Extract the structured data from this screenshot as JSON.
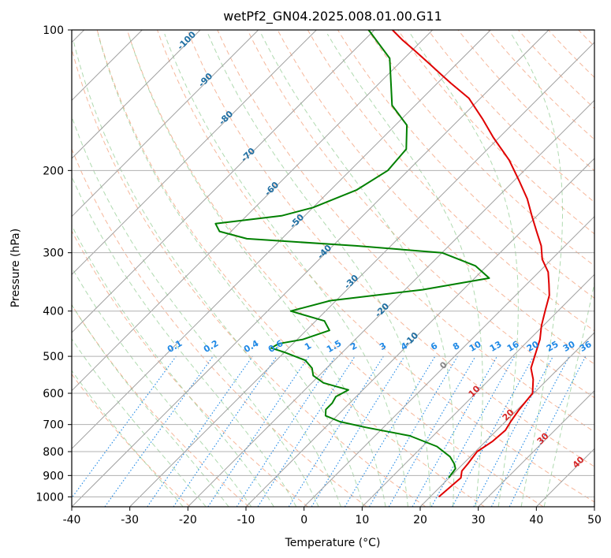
{
  "chart_data": {
    "type": "line",
    "title": "wetPf2_GN04.2025.008.01.00.G11",
    "xlabel": "Temperature (°C)",
    "ylabel": "Pressure (hPa)",
    "xlim": [
      -40,
      50
    ],
    "ylim": [
      1050,
      100
    ],
    "y_scale": "log",
    "skew": true,
    "x_ticks": [
      -40,
      -30,
      -20,
      -10,
      0,
      10,
      20,
      30,
      40,
      50
    ],
    "y_ticks": [
      100,
      200,
      300,
      400,
      500,
      600,
      700,
      800,
      900,
      1000
    ],
    "grid": true,
    "colors": {
      "temperature": "#e00000",
      "dewpoint": "#008000",
      "isotherm": "#a0a0a0",
      "dry_adiabat": "#f4a582",
      "moist_adiabat": "#8fca8f",
      "mixing_ratio": "#1e88e5",
      "isotherm_label": "#1f6fa3",
      "dry_adiabat_label": "#d62728"
    },
    "series": [
      {
        "key": "temperature",
        "points": [
          [
            1000,
            21.5
          ],
          [
            910,
            22.0
          ],
          [
            880,
            21.0
          ],
          [
            850,
            20.8
          ],
          [
            800,
            20.3
          ],
          [
            760,
            21.2
          ],
          [
            720,
            21.5
          ],
          [
            690,
            20.9
          ],
          [
            650,
            20.3
          ],
          [
            600,
            19.8
          ],
          [
            560,
            17.5
          ],
          [
            530,
            15.2
          ],
          [
            500,
            13.8
          ],
          [
            460,
            11.8
          ],
          [
            430,
            9.7
          ],
          [
            400,
            7.8
          ],
          [
            370,
            5.8
          ],
          [
            350,
            3.8
          ],
          [
            330,
            1.6
          ],
          [
            310,
            -1.6
          ],
          [
            290,
            -4.1
          ],
          [
            270,
            -7.4
          ],
          [
            250,
            -10.9
          ],
          [
            230,
            -14.6
          ],
          [
            210,
            -19.2
          ],
          [
            190,
            -24.4
          ],
          [
            170,
            -31.0
          ],
          [
            155,
            -36.1
          ],
          [
            140,
            -42.0
          ],
          [
            130,
            -47.7
          ],
          [
            125,
            -50.6
          ],
          [
            118,
            -54.8
          ],
          [
            110,
            -60.0
          ],
          [
            105,
            -63.5
          ],
          [
            100,
            -66.9
          ]
        ]
      },
      {
        "key": "dewpoint",
        "points": [
          [
            910,
            19.9
          ],
          [
            870,
            19.5
          ],
          [
            850,
            18.5
          ],
          [
            820,
            16.5
          ],
          [
            780,
            12.5
          ],
          [
            740,
            6.0
          ],
          [
            710,
            -3.0
          ],
          [
            690,
            -8.5
          ],
          [
            670,
            -12.0
          ],
          [
            650,
            -13.0
          ],
          [
            630,
            -13.0
          ],
          [
            610,
            -13.5
          ],
          [
            590,
            -12.5
          ],
          [
            570,
            -18.0
          ],
          [
            550,
            -21.0
          ],
          [
            530,
            -22.5
          ],
          [
            510,
            -25.0
          ],
          [
            490,
            -30.0
          ],
          [
            480,
            -33.0
          ],
          [
            470,
            -32.5
          ],
          [
            460,
            -29.0
          ],
          [
            440,
            -26.0
          ],
          [
            420,
            -28.5
          ],
          [
            400,
            -36.0
          ],
          [
            380,
            -31.0
          ],
          [
            360,
            -17.0
          ],
          [
            340,
            -7.5
          ],
          [
            320,
            -12.0
          ],
          [
            300,
            -20.0
          ],
          [
            290,
            -36.0
          ],
          [
            280,
            -56.0
          ],
          [
            270,
            -62.0
          ],
          [
            260,
            -64.0
          ],
          [
            250,
            -54.0
          ],
          [
            240,
            -50.0
          ],
          [
            220,
            -45.5
          ],
          [
            200,
            -43.5
          ],
          [
            180,
            -44.0
          ],
          [
            160,
            -48.0
          ],
          [
            145,
            -54.0
          ],
          [
            130,
            -58.0
          ],
          [
            115,
            -62.5
          ],
          [
            100,
            -71.0
          ]
        ]
      }
    ],
    "isotherm_labels": [
      "-100",
      "-90",
      "-80",
      "-70",
      "-60",
      "-50",
      "-40",
      "-30",
      "-20",
      "-10",
      "0",
      "10",
      "20",
      "30",
      "40"
    ],
    "mixing_ratio_labels": [
      "0.1",
      "0.2",
      "0.4",
      "0.6",
      "1",
      "1.5",
      "2",
      "3",
      "4",
      "6",
      "8",
      "10",
      "13",
      "16",
      "20",
      "25",
      "30",
      "36"
    ]
  }
}
